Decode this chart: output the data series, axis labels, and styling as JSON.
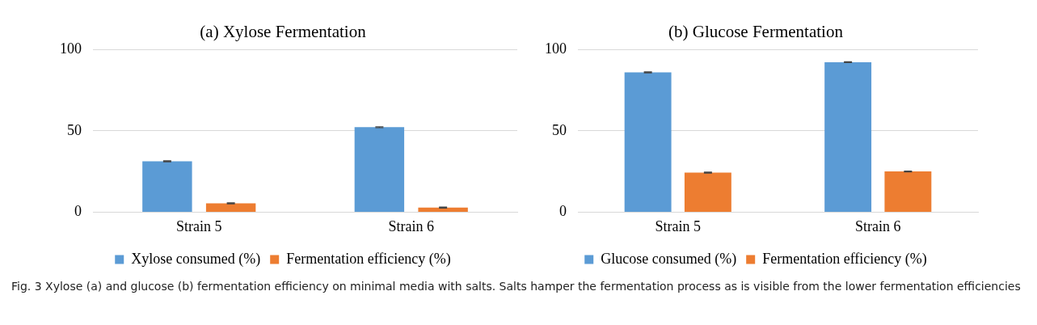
{
  "chart_data": [
    {
      "type": "bar",
      "title": "(a) Xylose Fermentation",
      "categories": [
        "Strain 5",
        "Strain 6"
      ],
      "series": [
        {
          "name": "Xylose consumed (%)",
          "color": "#5b9bd5",
          "values": [
            31.3,
            52.2
          ],
          "errors": [
            0.3,
            0.3
          ]
        },
        {
          "name": "Fermentation efficiency (%)",
          "color": "#ed7d31",
          "values": [
            5.4,
            2.8
          ],
          "errors": [
            0.3,
            0.3
          ]
        }
      ],
      "ylim": [
        0,
        100
      ],
      "yticks": [
        0,
        50,
        100
      ],
      "grid": "y",
      "legend": "bottom"
    },
    {
      "type": "bar",
      "title": "(b) Glucose Fermentation",
      "categories": [
        "Strain 5",
        "Strain 6"
      ],
      "series": [
        {
          "name": "Glucose consumed (%)",
          "color": "#5b9bd5",
          "values": [
            85.9,
            92.2
          ],
          "errors": [
            0.3,
            0.3
          ]
        },
        {
          "name": "Fermentation efficiency (%)",
          "color": "#ed7d31",
          "values": [
            24.3,
            25.0
          ],
          "errors": [
            0.3,
            0.3
          ]
        }
      ],
      "ylim": [
        0,
        100
      ],
      "yticks": [
        0,
        50,
        100
      ],
      "grid": "y",
      "legend": "bottom",
      "annotations": [
        "Fig. 3  Xylose (a) and glucose (b) fermentation efficiency on minimal media with salts. Salts hamper the fermentation process as is visible from the lower fermentation efficiencies"
      ]
    }
  ]
}
